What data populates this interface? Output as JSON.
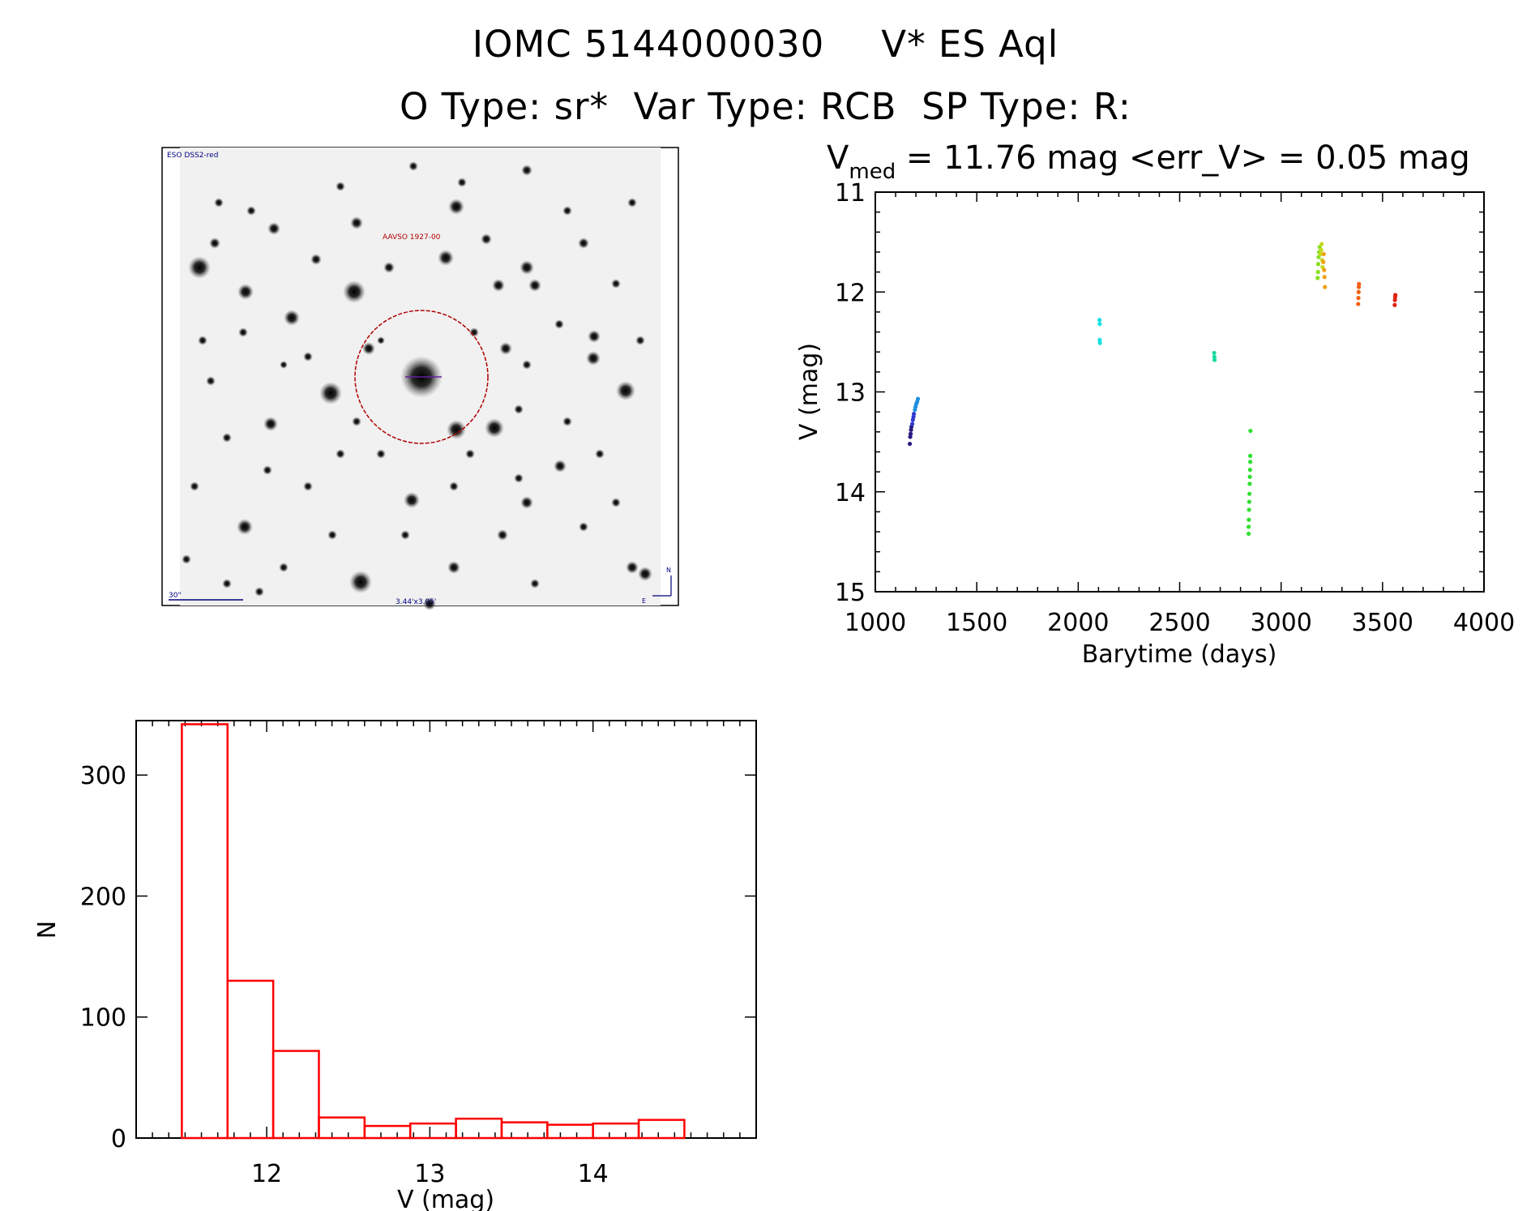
{
  "header": {
    "line1_id": "IOMC 5144000030",
    "line1_name": "V* ES Aql",
    "line2": "O Type: sr*  Var Type: RCB  SP Type: R:"
  },
  "image_panel": {
    "survey_label": "ESO DSS2-red",
    "target_label": "AAVSO 1927-00",
    "scale_label": "30\"",
    "size_label": "3.44'x3.05'",
    "north_label": "N",
    "east_label": "E",
    "marker_color": "#b00000"
  },
  "chart_data": [
    {
      "type": "scatter",
      "title_prefix": "V",
      "title_subscript": "med",
      "title_rest": " = 11.76 mag <err_V> = 0.05 mag",
      "xlabel": "Barytime (days)",
      "ylabel": "V (mag)",
      "xlim": [
        1000,
        4000
      ],
      "ylim": [
        15,
        11
      ],
      "y_inverted": true,
      "x_ticks": [
        1000,
        1500,
        2000,
        2500,
        3000,
        3500,
        4000
      ],
      "y_ticks": [
        11,
        12,
        13,
        14,
        15
      ],
      "grid": false,
      "groups": [
        {
          "color": "#2a1a80",
          "points": [
            [
              1170,
              13.52
            ],
            [
              1172,
              13.45
            ],
            [
              1174,
              13.42
            ],
            [
              1176,
              13.38
            ],
            [
              1178,
              13.35
            ]
          ]
        },
        {
          "color": "#2f3ad0",
          "points": [
            [
              1182,
              13.32
            ],
            [
              1185,
              13.28
            ],
            [
              1188,
              13.25
            ],
            [
              1190,
              13.22
            ]
          ]
        },
        {
          "color": "#1f8fe0",
          "points": [
            [
              1195,
              13.18
            ],
            [
              1198,
              13.15
            ],
            [
              1202,
              13.12
            ],
            [
              1206,
              13.1
            ],
            [
              1210,
              13.07
            ]
          ]
        },
        {
          "color": "#18e0e0",
          "points": [
            [
              2105,
              12.28
            ],
            [
              2106,
              12.32
            ],
            [
              2106,
              12.48
            ],
            [
              2107,
              12.51
            ]
          ]
        },
        {
          "color": "#18d8a0",
          "points": [
            [
              2670,
              12.61
            ],
            [
              2671,
              12.65
            ],
            [
              2672,
              12.68
            ]
          ]
        },
        {
          "color": "#30e030",
          "points": [
            [
              2840,
              14.42
            ],
            [
              2840,
              14.35
            ],
            [
              2841,
              14.28
            ],
            [
              2842,
              14.18
            ],
            [
              2843,
              14.1
            ],
            [
              2844,
              14.02
            ],
            [
              2845,
              13.92
            ],
            [
              2846,
              13.85
            ],
            [
              2847,
              13.78
            ],
            [
              2848,
              13.7
            ],
            [
              2848,
              13.64
            ],
            [
              2849,
              13.39
            ]
          ]
        },
        {
          "color": "#88e020",
          "points": [
            [
              3180,
              11.86
            ],
            [
              3182,
              11.8
            ],
            [
              3183,
              11.72
            ],
            [
              3185,
              11.65
            ],
            [
              3187,
              11.6
            ],
            [
              3190,
              11.55
            ]
          ]
        },
        {
          "color": "#c8d820",
          "points": [
            [
              3195,
              11.62
            ],
            [
              3198,
              11.58
            ],
            [
              3200,
              11.52
            ],
            [
              3202,
              11.68
            ],
            [
              3204,
              11.75
            ]
          ]
        },
        {
          "color": "#f0a010",
          "points": [
            [
              3208,
              11.7
            ],
            [
              3210,
              11.62
            ],
            [
              3212,
              11.78
            ],
            [
              3214,
              11.85
            ],
            [
              3216,
              11.95
            ]
          ]
        },
        {
          "color": "#f06010",
          "points": [
            [
              3380,
              12.12
            ],
            [
              3381,
              12.06
            ],
            [
              3382,
              12.0
            ],
            [
              3383,
              11.95
            ],
            [
              3384,
              11.92
            ]
          ]
        },
        {
          "color": "#e02010",
          "points": [
            [
              3560,
              12.13
            ],
            [
              3561,
              12.08
            ],
            [
              3562,
              12.05
            ],
            [
              3563,
              12.03
            ]
          ]
        }
      ]
    },
    {
      "type": "bar",
      "xlabel": "V (mag)",
      "ylabel": "N",
      "xlim": [
        11.2,
        15.0
      ],
      "ylim": [
        0,
        345
      ],
      "x_ticks": [
        12,
        13,
        14
      ],
      "y_ticks": [
        0,
        100,
        200,
        300
      ],
      "bin_edges": [
        11.48,
        11.76,
        12.04,
        12.32,
        12.6,
        12.88,
        13.16,
        13.44,
        13.72,
        14.0,
        14.28,
        14.56
      ],
      "values": [
        342,
        130,
        72,
        17,
        10,
        12,
        16,
        13,
        11,
        12,
        15
      ],
      "color": "#ff0000"
    }
  ]
}
